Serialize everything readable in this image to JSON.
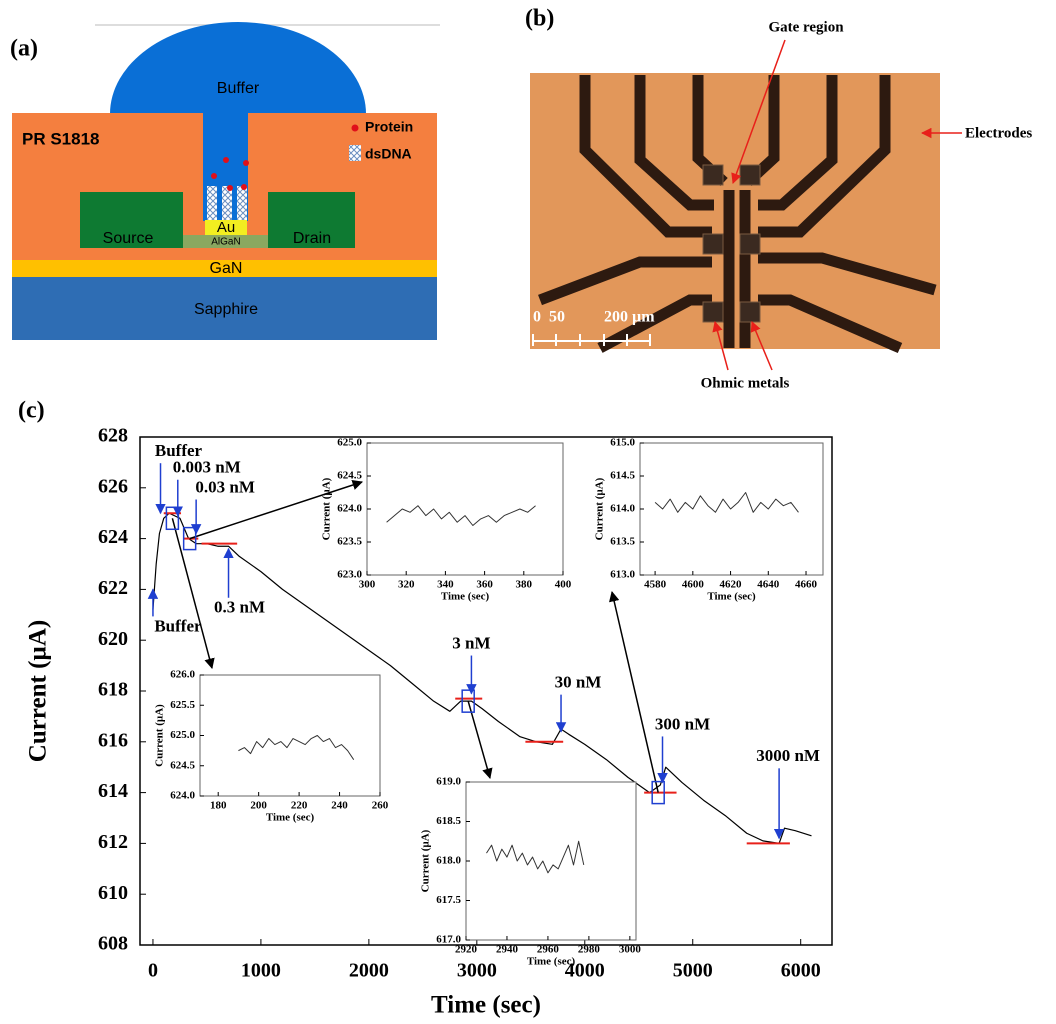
{
  "panel_a": {
    "label": "(a)",
    "buffer": "Buffer",
    "resist": "PR S1818",
    "protein": "Protein",
    "dsdna": "dsDNA",
    "source": "Source",
    "au": "Au",
    "algan": "AlGaN",
    "drain": "Drain",
    "gan": "GaN",
    "substrate": "Sapphire"
  },
  "panel_b": {
    "label": "(b)",
    "gate": "Gate region",
    "electrodes": "Electrodes",
    "ohmic": "Ohmic metals",
    "scale_labels": [
      "0",
      "50",
      "200 µm"
    ]
  },
  "panel_c": {
    "label": "(c)"
  },
  "chart_data": [
    {
      "type": "line",
      "xlabel": "Time (sec)",
      "ylabel": "Current (µA)",
      "xlim": [
        -120,
        6290
      ],
      "ylim": [
        608,
        628
      ],
      "xticks": [
        0,
        1000,
        2000,
        3000,
        4000,
        5000,
        6000
      ],
      "yticks": [
        608,
        610,
        612,
        614,
        616,
        618,
        620,
        622,
        624,
        626,
        628
      ],
      "x": [
        0,
        30,
        60,
        100,
        150,
        200,
        250,
        300,
        330,
        400,
        500,
        600,
        700,
        800,
        1000,
        1200,
        1400,
        1600,
        1800,
        2000,
        2200,
        2400,
        2600,
        2750,
        2850,
        2950,
        3050,
        3200,
        3400,
        3550,
        3700,
        3780,
        3850,
        4000,
        4200,
        4400,
        4600,
        4700,
        4750,
        4900,
        5100,
        5300,
        5500,
        5650,
        5800,
        5850,
        5950,
        6100
      ],
      "series": [
        {
          "color": "#000000",
          "values": [
            621.2,
            623.0,
            624.2,
            624.8,
            625.0,
            624.9,
            624.8,
            624.3,
            624.0,
            623.8,
            623.8,
            623.7,
            623.7,
            623.3,
            622.7,
            622.0,
            621.4,
            620.8,
            620.2,
            619.6,
            619.0,
            618.3,
            617.6,
            617.2,
            617.6,
            617.6,
            617.3,
            616.8,
            616.2,
            616.0,
            615.9,
            616.5,
            616.3,
            615.9,
            615.3,
            614.6,
            614.0,
            614.3,
            615.0,
            614.4,
            613.7,
            613.1,
            612.4,
            612.1,
            612.0,
            612.6,
            612.5,
            612.3
          ]
        }
      ],
      "baseline_color": "#e8201a",
      "baselines": [
        {
          "x": [
            100,
            260
          ],
          "y": 625.0
        },
        {
          "x": [
            280,
            420
          ],
          "y": 624.0
        },
        {
          "x": [
            450,
            780
          ],
          "y": 623.8
        },
        {
          "x": [
            2800,
            3050
          ],
          "y": 617.7
        },
        {
          "x": [
            3450,
            3800
          ],
          "y": 616.0
        },
        {
          "x": [
            4550,
            4850
          ],
          "y": 614.0
        },
        {
          "x": [
            5500,
            5900
          ],
          "y": 612.0
        }
      ],
      "annotation_color": "#1f3fd0",
      "annotations": [
        {
          "text": "Buffer",
          "x": 70,
          "y": 625.0
        },
        {
          "text": "0.003 nM",
          "x": 230,
          "y": 624.9
        },
        {
          "text": "0.03 nM",
          "x": 400,
          "y": 624.2
        },
        {
          "text": "Buffer",
          "x": 0,
          "y": 622.0
        },
        {
          "text": "0.3 nM",
          "x": 700,
          "y": 623.6
        },
        {
          "text": "3 nM",
          "x": 2950,
          "y": 617.9
        },
        {
          "text": "30 nM",
          "x": 3780,
          "y": 616.4
        },
        {
          "text": "300 nM",
          "x": 4720,
          "y": 614.4
        },
        {
          "text": "3000 nM",
          "x": 5800,
          "y": 612.2
        }
      ],
      "zoom_boxes": [
        {
          "x": 180,
          "y": 624.8
        },
        {
          "x": 340,
          "y": 624.0
        },
        {
          "x": 2920,
          "y": 617.6
        },
        {
          "x": 4680,
          "y": 614.0
        }
      ]
    },
    {
      "type": "line",
      "xlabel": "Time (sec)",
      "ylabel": "Current (µA)",
      "xlim": [
        300,
        400
      ],
      "ylim": [
        623,
        625
      ],
      "xticks": [
        300,
        320,
        340,
        360,
        380,
        400
      ],
      "yticks": [
        {
          "value": 623,
          "label": "623.0"
        },
        623.5,
        {
          "value": 624,
          "label": "624.0"
        },
        624.5,
        {
          "value": 625,
          "label": "625.0"
        }
      ],
      "x": [
        310,
        314,
        318,
        322,
        326,
        330,
        334,
        338,
        342,
        346,
        350,
        354,
        358,
        362,
        366,
        370,
        374,
        378,
        382,
        386
      ],
      "series": [
        {
          "color": "#333333",
          "values": [
            623.8,
            623.9,
            624.0,
            623.95,
            624.05,
            623.9,
            624.0,
            623.85,
            623.95,
            623.8,
            623.9,
            623.75,
            623.85,
            623.9,
            623.8,
            623.9,
            623.95,
            624.0,
            623.95,
            624.05
          ]
        }
      ]
    },
    {
      "type": "line",
      "xlabel": "Time (sec)",
      "ylabel": "Current (µA)",
      "xlim": [
        4572,
        4669
      ],
      "ylim": [
        613,
        615
      ],
      "xticks": [
        4580,
        4600,
        4620,
        4640,
        4660
      ],
      "yticks": [
        {
          "value": 613,
          "label": "613.0"
        },
        613.5,
        {
          "value": 614,
          "label": "614.0"
        },
        614.5,
        {
          "value": 615,
          "label": "615.0"
        }
      ],
      "x": [
        4580,
        4584,
        4588,
        4592,
        4596,
        4600,
        4604,
        4608,
        4612,
        4616,
        4620,
        4624,
        4628,
        4632,
        4636,
        4640,
        4644,
        4648,
        4652,
        4656
      ],
      "series": [
        {
          "color": "#333333",
          "values": [
            614.1,
            614.0,
            614.15,
            613.95,
            614.1,
            614.0,
            614.2,
            614.05,
            613.95,
            614.15,
            614.0,
            614.1,
            614.25,
            613.95,
            614.1,
            614.0,
            614.15,
            614.05,
            614.1,
            613.95
          ]
        }
      ]
    },
    {
      "type": "line",
      "xlabel": "Time (sec)",
      "ylabel": "Current (µA)",
      "xlim": [
        171,
        260
      ],
      "ylim": [
        624,
        626
      ],
      "xticks": [
        180,
        200,
        220,
        240,
        260
      ],
      "yticks": [
        {
          "value": 624,
          "label": "624.0"
        },
        624.5,
        {
          "value": 625,
          "label": "625.0"
        },
        625.5,
        {
          "value": 626,
          "label": "626.0"
        }
      ],
      "x": [
        190,
        193,
        196,
        199,
        202,
        205,
        208,
        211,
        214,
        217,
        220,
        223,
        226,
        229,
        232,
        235,
        238,
        241,
        244,
        247
      ],
      "series": [
        {
          "color": "#333333",
          "values": [
            624.75,
            624.8,
            624.7,
            624.9,
            624.8,
            624.95,
            624.85,
            624.9,
            624.8,
            624.95,
            624.9,
            624.85,
            624.95,
            625.0,
            624.9,
            624.95,
            624.8,
            624.85,
            624.75,
            624.6
          ]
        }
      ]
    },
    {
      "type": "line",
      "xlabel": "Time (sec)",
      "ylabel": "Current (µA)",
      "xlim": [
        2920,
        3003
      ],
      "ylim": [
        617,
        619
      ],
      "xticks": [
        2920,
        2940,
        2960,
        2980,
        3000
      ],
      "yticks": [
        {
          "value": 617,
          "label": "617.0"
        },
        617.5,
        {
          "value": 618,
          "label": "618.0"
        },
        618.5,
        {
          "value": 619,
          "label": "619.0"
        }
      ],
      "x": [
        2930,
        2932.5,
        2935,
        2937.5,
        2940,
        2942.5,
        2945,
        2947.5,
        2950,
        2952.5,
        2955,
        2957.5,
        2960,
        2962.5,
        2965,
        2967.5,
        2970,
        2972.5,
        2975,
        2977.5
      ],
      "series": [
        {
          "color": "#333333",
          "values": [
            618.1,
            618.2,
            618.0,
            618.15,
            618.05,
            618.2,
            618.0,
            618.1,
            617.95,
            618.05,
            617.9,
            618.0,
            617.85,
            617.95,
            617.9,
            618.05,
            618.2,
            617.95,
            618.25,
            617.95
          ]
        }
      ]
    }
  ]
}
